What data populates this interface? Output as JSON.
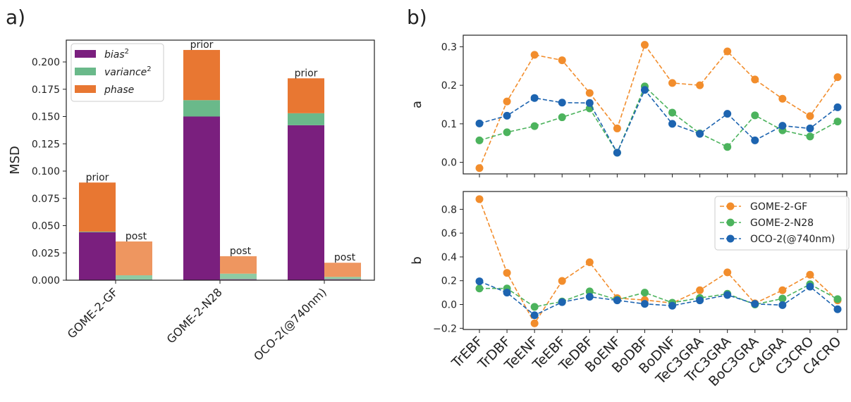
{
  "panel_labels": {
    "a": "a)",
    "b": "b)"
  },
  "colors": {
    "bias": "#7a1f7e",
    "variance": "#6ab98a",
    "phase": "#e87732",
    "phase_post": "#ee9660",
    "bias_post": "#9e6aa3",
    "variance_post": "#8ecba4",
    "gome2gf": "#f28d2c",
    "gome2n28": "#4cb35d",
    "oco2": "#1d64b0"
  },
  "chart_data": [
    {
      "type": "bar",
      "stacked": true,
      "ylabel": "MSD",
      "ylim": [
        0,
        0.22
      ],
      "yticks": [
        "0.000",
        "0.025",
        "0.050",
        "0.075",
        "0.100",
        "0.125",
        "0.150",
        "0.175",
        "0.200"
      ],
      "categories": [
        "GOME-2-GF",
        "GOME-2-N28",
        "OCO-2(@740nm)"
      ],
      "bar_labels": [
        "prior",
        "post"
      ],
      "legend_position": "upper-left",
      "legend": {
        "bias": {
          "base": "bias",
          "sup": "2"
        },
        "variance": {
          "base": "variance",
          "sup": "2"
        },
        "phase": {
          "base": "phase",
          "sup": ""
        }
      },
      "series": [
        {
          "name": "bias",
          "prior": [
            0.044,
            0.15,
            0.142
          ],
          "post": [
            0.0005,
            0.001,
            0.001
          ]
        },
        {
          "name": "variance",
          "prior": [
            0.0005,
            0.015,
            0.011
          ],
          "post": [
            0.004,
            0.005,
            0.002
          ]
        },
        {
          "name": "phase",
          "prior": [
            0.045,
            0.046,
            0.032
          ],
          "post": [
            0.031,
            0.016,
            0.013
          ]
        }
      ]
    },
    {
      "type": "line",
      "ylabel": "a",
      "ylim": [
        -0.03,
        0.33
      ],
      "yticks": [
        "0.0",
        "0.1",
        "0.2",
        "0.3"
      ],
      "categories": [
        "TrEBF",
        "TrDBF",
        "TeENF",
        "TeEBF",
        "TeDBF",
        "BoENF",
        "BoDBF",
        "BoDNF",
        "TeC3GRA",
        "TrC3GRA",
        "BoC3GRA",
        "C4GRA",
        "C3CRO",
        "C4CRO"
      ],
      "series": [
        {
          "name": "GOME-2-GF",
          "values": [
            -0.015,
            0.158,
            0.279,
            0.265,
            0.18,
            0.088,
            0.305,
            0.206,
            0.2,
            0.288,
            0.215,
            0.165,
            0.12,
            0.221
          ]
        },
        {
          "name": "GOME-2-N28",
          "values": [
            0.057,
            0.078,
            0.094,
            0.117,
            0.14,
            0.025,
            0.197,
            0.129,
            0.075,
            0.04,
            0.122,
            0.083,
            0.067,
            0.106
          ]
        },
        {
          "name": "OCO-2(@740nm)",
          "values": [
            0.101,
            0.121,
            0.167,
            0.155,
            0.154,
            0.025,
            0.188,
            0.1,
            0.074,
            0.126,
            0.057,
            0.095,
            0.088,
            0.143
          ]
        }
      ]
    },
    {
      "type": "line",
      "ylabel": "b",
      "ylim": [
        -0.21,
        0.95
      ],
      "yticks": [
        "−0.2",
        "0.0",
        "0.2",
        "0.4",
        "0.6",
        "0.8"
      ],
      "categories": [
        "TrEBF",
        "TrDBF",
        "TeENF",
        "TeEBF",
        "TeDBF",
        "BoENF",
        "BoDBF",
        "BoDNF",
        "TeC3GRA",
        "TrC3GRA",
        "BoC3GRA",
        "C4GRA",
        "C3CRO",
        "C4CRO"
      ],
      "legend_position": "upper-right",
      "series": [
        {
          "name": "GOME-2-GF",
          "values": [
            0.886,
            0.266,
            -0.158,
            0.198,
            0.355,
            0.053,
            0.038,
            0.012,
            0.12,
            0.27,
            0.01,
            0.12,
            0.25,
            0.035
          ]
        },
        {
          "name": "GOME-2-N28",
          "values": [
            0.135,
            0.135,
            -0.02,
            0.025,
            0.11,
            0.04,
            0.1,
            0.015,
            0.055,
            0.09,
            0.0,
            0.05,
            0.17,
            0.045
          ]
        },
        {
          "name": "OCO-2(@740nm)",
          "values": [
            0.195,
            0.1,
            -0.09,
            0.02,
            0.065,
            0.035,
            0.005,
            -0.01,
            0.035,
            0.08,
            0.005,
            -0.005,
            0.15,
            -0.04
          ]
        }
      ]
    }
  ]
}
